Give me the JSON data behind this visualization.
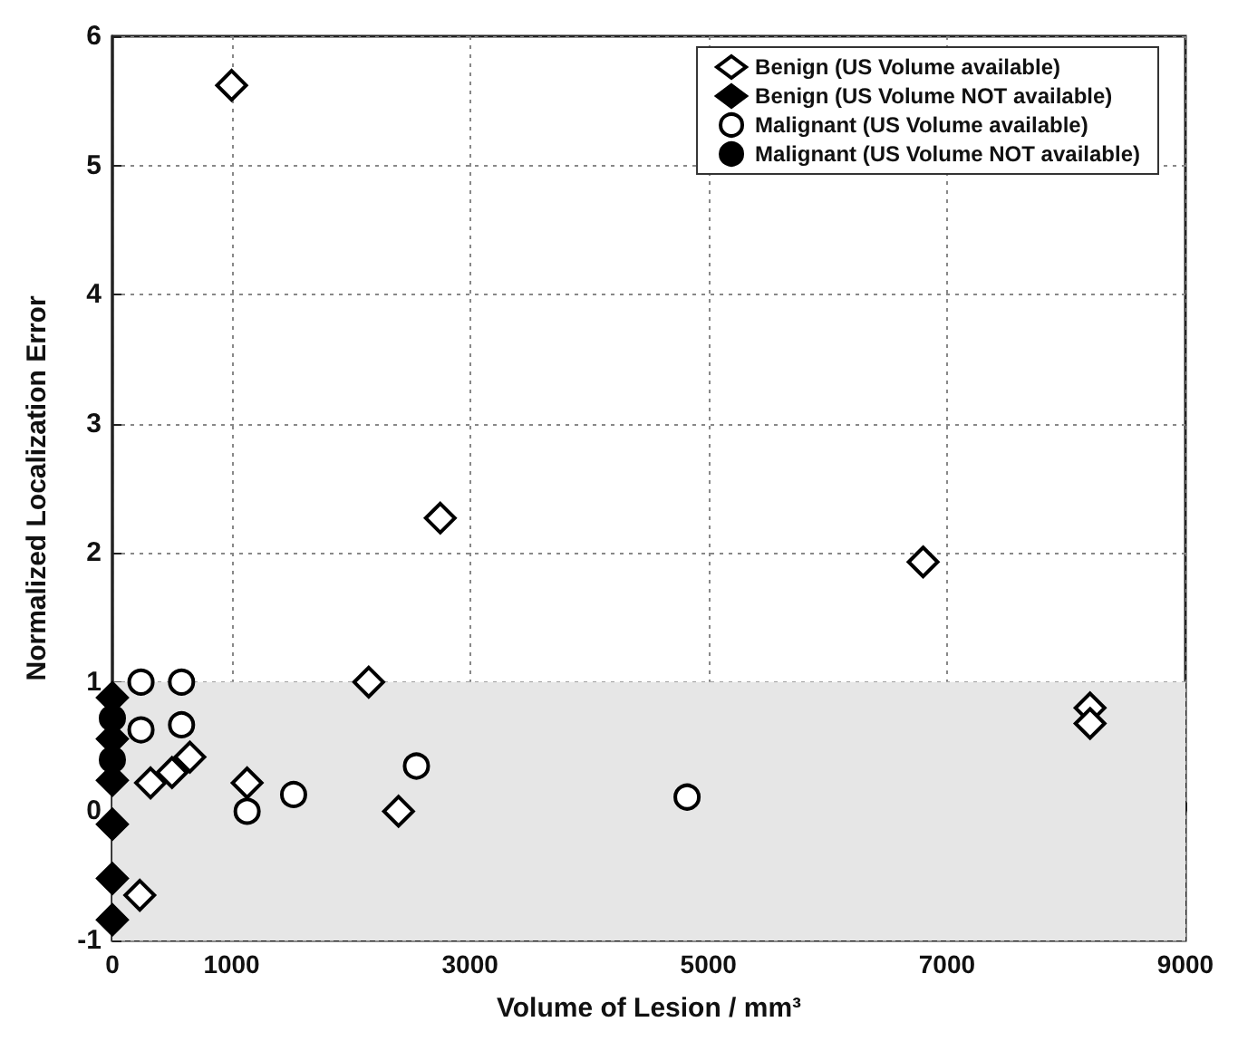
{
  "chart_data": {
    "type": "scatter",
    "xlabel": "Volume of Lesion / mm³",
    "ylabel": "Normalized Localization Error",
    "xlim": [
      0,
      9000
    ],
    "xticks": [
      0,
      1000,
      3000,
      5000,
      7000,
      9000
    ],
    "ylim": [
      -1,
      6
    ],
    "yticks": [
      -1,
      0,
      1,
      2,
      3,
      4,
      5,
      6
    ],
    "grid": true,
    "legend": "top right",
    "bands": [
      {
        "axis": "y",
        "from": -1,
        "to": 1,
        "color": "#e6e6e6"
      }
    ],
    "series": [
      {
        "name": "Benign (US Volume available)",
        "marker": "diamond",
        "color": "#ffffff",
        "x": [
          1000,
          2750,
          6800,
          8200,
          8200,
          2150,
          2400,
          1130,
          320,
          500,
          650,
          230
        ],
        "values": [
          5.62,
          2.27,
          1.93,
          0.8,
          0.68,
          1.0,
          0.0,
          0.22,
          0.22,
          0.3,
          0.42,
          -0.65
        ]
      },
      {
        "name": "Benign (US Volume NOT available)",
        "marker": "diamond",
        "color": "#000000",
        "x": [
          0,
          0,
          0,
          0,
          0,
          0
        ],
        "values": [
          0.88,
          0.56,
          0.24,
          -0.1,
          -0.52,
          -0.84
        ]
      },
      {
        "name": "Malignant (US Volume available)",
        "marker": "circle",
        "color": "#ffffff",
        "x": [
          240,
          580,
          580,
          240,
          1130,
          1520,
          2550,
          4820
        ],
        "values": [
          1.0,
          1.0,
          0.67,
          0.63,
          0.0,
          0.13,
          0.35,
          0.11
        ]
      },
      {
        "name": "Malignant (US Volume NOT available)",
        "marker": "circle",
        "color": "#000000",
        "x": [
          0,
          0
        ],
        "values": [
          0.72,
          0.4
        ]
      }
    ]
  }
}
